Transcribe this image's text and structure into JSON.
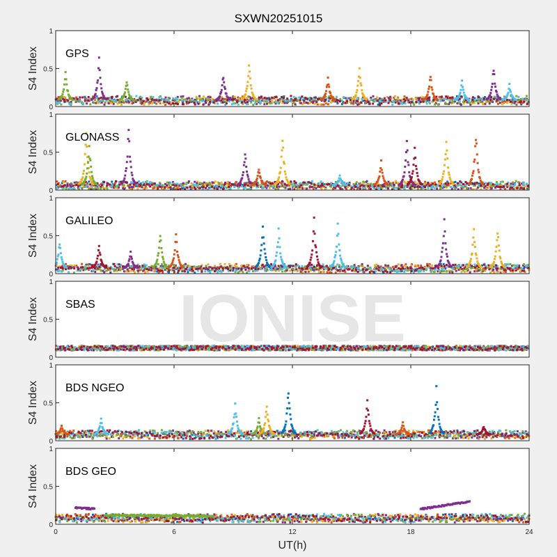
{
  "figure": {
    "title": "SXWN20251015",
    "watermark": "IONISE",
    "xlabel": "UT(h)",
    "background": "#f0f0f0",
    "series_colors": [
      "#0072BD",
      "#D95319",
      "#EDB120",
      "#7E2F8E",
      "#77AC30",
      "#4DBEEE",
      "#A2142F"
    ]
  },
  "chart_data": [
    {
      "type": "scatter",
      "label": "GPS",
      "ylabel": "S4 Index",
      "xlim": [
        0,
        24
      ],
      "ylim": [
        0,
        1
      ],
      "yticks": [
        "0",
        "0.5",
        "1"
      ],
      "xticks": [
        0,
        6,
        12,
        18,
        24
      ],
      "baseline": 0.08,
      "spikes": [
        [
          0.5,
          0.47,
          4
        ],
        [
          2.2,
          0.65,
          3
        ],
        [
          3.6,
          0.35,
          4
        ],
        [
          8.5,
          0.45,
          3
        ],
        [
          9.8,
          0.6,
          2
        ],
        [
          13.8,
          0.4,
          1
        ],
        [
          15.4,
          0.55,
          2
        ],
        [
          19.0,
          0.44,
          1
        ],
        [
          20.6,
          0.35,
          5
        ],
        [
          22.2,
          0.55,
          3
        ],
        [
          23.0,
          0.3,
          5
        ]
      ]
    },
    {
      "type": "scatter",
      "label": "GLONASS",
      "ylabel": "S4 Index",
      "xlim": [
        0,
        24
      ],
      "ylim": [
        0,
        1
      ],
      "yticks": [
        "0",
        "0.5",
        "1"
      ],
      "xticks": [
        0,
        6,
        12,
        18,
        24
      ],
      "baseline": 0.06,
      "spikes": [
        [
          1.55,
          0.8,
          2
        ],
        [
          1.7,
          0.65,
          4
        ],
        [
          3.7,
          0.88,
          3
        ],
        [
          9.6,
          0.55,
          3
        ],
        [
          10.3,
          0.3,
          1
        ],
        [
          11.5,
          0.74,
          2
        ],
        [
          14.4,
          0.2,
          5
        ],
        [
          16.5,
          0.4,
          1
        ],
        [
          17.8,
          0.7,
          3
        ],
        [
          18.2,
          0.6,
          6
        ],
        [
          19.8,
          0.72,
          2
        ],
        [
          21.3,
          0.8,
          1
        ]
      ]
    },
    {
      "type": "scatter",
      "label": "GALILEO",
      "ylabel": "S4 Index",
      "xlim": [
        0,
        24
      ],
      "ylim": [
        0,
        1
      ],
      "yticks": [
        "0",
        "0.5",
        "1"
      ],
      "xticks": [
        0,
        6,
        12,
        18,
        24
      ],
      "baseline": 0.07,
      "spikes": [
        [
          0.2,
          0.45,
          5
        ],
        [
          2.2,
          0.4,
          6
        ],
        [
          3.8,
          0.3,
          3
        ],
        [
          5.3,
          0.6,
          4
        ],
        [
          6.1,
          0.55,
          1
        ],
        [
          10.5,
          0.68,
          0
        ],
        [
          11.3,
          0.6,
          5
        ],
        [
          13.1,
          0.74,
          6
        ],
        [
          14.3,
          0.68,
          5
        ],
        [
          19.7,
          0.76,
          3
        ],
        [
          21.2,
          0.64,
          2
        ],
        [
          22.4,
          0.62,
          2
        ]
      ]
    },
    {
      "type": "scatter",
      "label": "SBAS",
      "ylabel": "S4 Index",
      "xlim": [
        0,
        24
      ],
      "ylim": [
        0,
        1
      ],
      "yticks": [
        "0",
        "0.5",
        "1"
      ],
      "xticks": [
        0,
        6,
        12,
        18,
        24
      ],
      "baseline": 0.12,
      "spikes": []
    },
    {
      "type": "scatter",
      "label": "BDS NGEO",
      "ylabel": "S4 Index",
      "xlim": [
        0,
        24
      ],
      "ylim": [
        0,
        1
      ],
      "yticks": [
        "0",
        "0.5",
        "1"
      ],
      "xticks": [
        0,
        6,
        12,
        18,
        24
      ],
      "baseline": 0.08,
      "spikes": [
        [
          0.3,
          0.2,
          1
        ],
        [
          2.3,
          0.3,
          5
        ],
        [
          9.1,
          0.5,
          5
        ],
        [
          10.3,
          0.3,
          4
        ],
        [
          10.7,
          0.5,
          2
        ],
        [
          11.8,
          0.74,
          0
        ],
        [
          15.8,
          0.58,
          6
        ],
        [
          17.6,
          0.25,
          1
        ],
        [
          19.3,
          0.72,
          0
        ],
        [
          21.7,
          0.2,
          6
        ]
      ]
    },
    {
      "type": "scatter",
      "label": "BDS GEO",
      "ylabel": "S4 Index",
      "xlabel": "UT(h)",
      "xlim": [
        0,
        24
      ],
      "ylim": [
        0,
        1
      ],
      "yticks": [
        "0",
        "0.5",
        "1"
      ],
      "xticks": [
        0,
        6,
        12,
        18,
        24
      ],
      "baseline": 0.08,
      "segments": [
        [
          1.0,
          2.0,
          0.22,
          0.2,
          3
        ],
        [
          2.5,
          8.0,
          0.12,
          0.11,
          4
        ],
        [
          18.5,
          21.0,
          0.2,
          0.3,
          3
        ]
      ]
    }
  ]
}
